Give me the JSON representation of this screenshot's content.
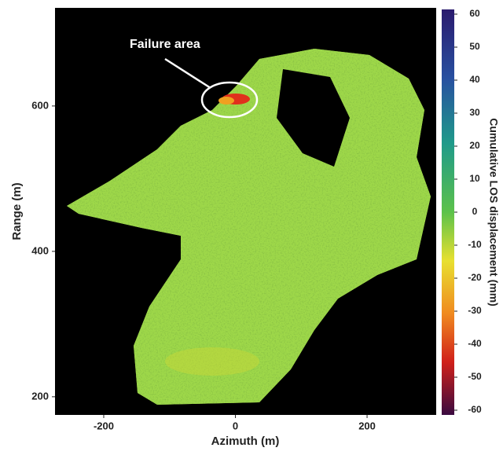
{
  "chart_data": {
    "type": "heatmap",
    "xlabel": "Azimuth (m)",
    "ylabel": "Range (m)",
    "xlim": [
      -274,
      305
    ],
    "xticks": [
      -200,
      0,
      200
    ],
    "ylim": [
      175,
      735
    ],
    "yticks": [
      200,
      400,
      600
    ],
    "colorbar": {
      "label": "Cumulative LOS displacement (mm)",
      "lim": [
        -60,
        60
      ],
      "ticks": [
        -60,
        -50,
        -40,
        -30,
        -20,
        -10,
        0,
        10,
        20,
        30,
        40,
        50,
        60
      ]
    },
    "annotation": "Failure area"
  }
}
